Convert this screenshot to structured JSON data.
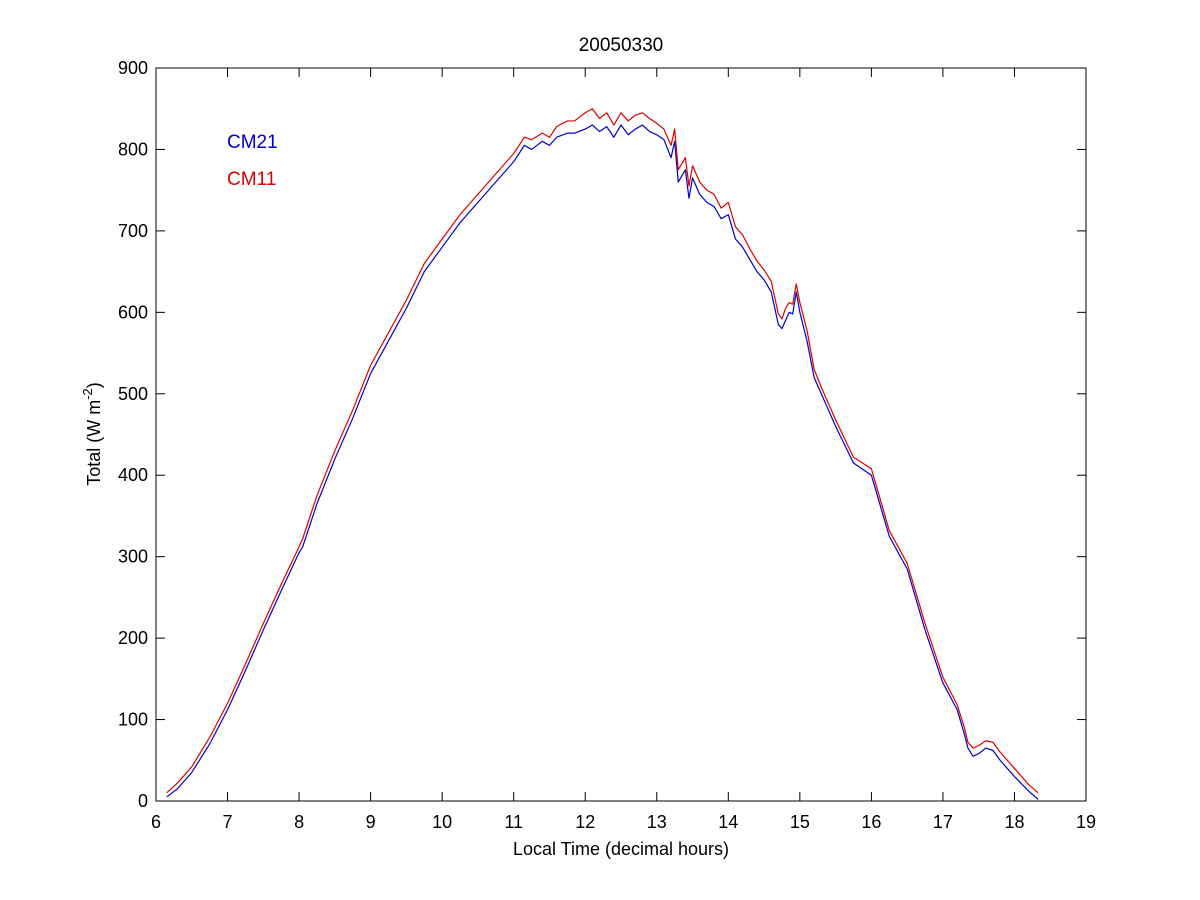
{
  "chart_data": {
    "type": "line",
    "title": "20050330",
    "xlabel": "Local Time (decimal hours)",
    "ylabel": {
      "prefix": "Total (W m",
      "superscript": "-2",
      "suffix": ")"
    },
    "xlim": [
      6,
      19
    ],
    "ylim": [
      0,
      900
    ],
    "xticks": [
      6,
      7,
      8,
      9,
      10,
      11,
      12,
      13,
      14,
      15,
      16,
      17,
      18,
      19
    ],
    "yticks": [
      0,
      100,
      200,
      300,
      400,
      500,
      600,
      700,
      800,
      900
    ],
    "grid": false,
    "legend_position": "top-left",
    "series": [
      {
        "name": "CM21",
        "color": "#0000cc",
        "x": [
          6.15,
          6.3,
          6.5,
          6.75,
          7.0,
          7.25,
          7.5,
          7.75,
          8.0,
          8.05,
          8.25,
          8.5,
          8.75,
          9.0,
          9.25,
          9.5,
          9.75,
          10.0,
          10.25,
          10.5,
          10.75,
          11.0,
          11.15,
          11.25,
          11.4,
          11.5,
          11.6,
          11.75,
          11.85,
          12.0,
          12.1,
          12.2,
          12.3,
          12.4,
          12.5,
          12.6,
          12.7,
          12.8,
          12.9,
          13.0,
          13.1,
          13.2,
          13.25,
          13.3,
          13.4,
          13.45,
          13.5,
          13.6,
          13.7,
          13.8,
          13.9,
          14.0,
          14.1,
          14.2,
          14.3,
          14.4,
          14.5,
          14.6,
          14.7,
          14.75,
          14.8,
          14.85,
          14.9,
          14.95,
          15.0,
          15.1,
          15.2,
          15.3,
          15.5,
          15.75,
          16.0,
          16.25,
          16.5,
          16.75,
          17.0,
          17.2,
          17.3,
          17.35,
          17.42,
          17.5,
          17.6,
          17.7,
          17.8,
          18.0,
          18.2,
          18.33
        ],
        "values": [
          5,
          15,
          35,
          70,
          112,
          160,
          210,
          258,
          305,
          312,
          365,
          420,
          470,
          525,
          565,
          605,
          650,
          680,
          710,
          735,
          760,
          785,
          805,
          800,
          810,
          805,
          815,
          820,
          820,
          825,
          830,
          822,
          828,
          815,
          830,
          818,
          825,
          830,
          822,
          818,
          812,
          790,
          810,
          760,
          775,
          740,
          765,
          745,
          735,
          730,
          715,
          720,
          690,
          680,
          665,
          650,
          640,
          625,
          585,
          580,
          590,
          600,
          598,
          625,
          600,
          565,
          520,
          500,
          460,
          415,
          400,
          325,
          285,
          210,
          145,
          112,
          82,
          65,
          55,
          58,
          65,
          62,
          50,
          30,
          12,
          2
        ]
      },
      {
        "name": "CM11",
        "color": "#dd0000",
        "x": [
          6.15,
          6.3,
          6.5,
          6.75,
          7.0,
          7.25,
          7.5,
          7.75,
          8.0,
          8.05,
          8.25,
          8.5,
          8.75,
          9.0,
          9.25,
          9.5,
          9.75,
          10.0,
          10.25,
          10.5,
          10.75,
          11.0,
          11.15,
          11.25,
          11.4,
          11.5,
          11.6,
          11.75,
          11.85,
          12.0,
          12.1,
          12.2,
          12.3,
          12.4,
          12.5,
          12.6,
          12.7,
          12.8,
          12.9,
          13.0,
          13.1,
          13.2,
          13.25,
          13.3,
          13.4,
          13.45,
          13.5,
          13.6,
          13.7,
          13.8,
          13.9,
          14.0,
          14.1,
          14.2,
          14.3,
          14.4,
          14.5,
          14.6,
          14.7,
          14.75,
          14.8,
          14.85,
          14.9,
          14.95,
          15.0,
          15.1,
          15.2,
          15.3,
          15.5,
          15.75,
          16.0,
          16.25,
          16.5,
          16.75,
          17.0,
          17.2,
          17.3,
          17.35,
          17.42,
          17.5,
          17.6,
          17.7,
          17.8,
          18.0,
          18.2,
          18.33
        ],
        "values": [
          10,
          22,
          42,
          78,
          120,
          168,
          218,
          266,
          312,
          322,
          375,
          430,
          480,
          535,
          575,
          615,
          660,
          690,
          720,
          745,
          770,
          795,
          815,
          812,
          820,
          815,
          828,
          835,
          835,
          845,
          850,
          838,
          845,
          830,
          845,
          835,
          842,
          845,
          838,
          832,
          825,
          805,
          825,
          775,
          790,
          755,
          780,
          760,
          750,
          745,
          728,
          735,
          705,
          695,
          678,
          663,
          652,
          638,
          598,
          592,
          605,
          612,
          610,
          635,
          612,
          578,
          530,
          508,
          468,
          422,
          408,
          332,
          292,
          218,
          152,
          118,
          90,
          72,
          65,
          68,
          74,
          72,
          60,
          40,
          20,
          10
        ]
      }
    ]
  }
}
